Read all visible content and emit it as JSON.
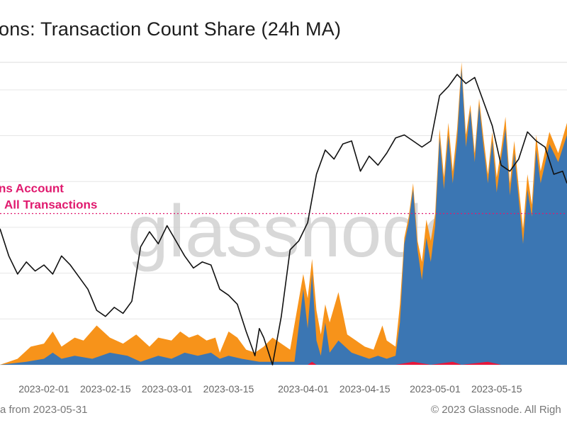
{
  "title": "ons: Transaction Count Share (24h MA)",
  "footer": {
    "left": "a from 2023-05-31",
    "right": "© 2023 Glassnode. All Righ"
  },
  "watermark": "glassnode",
  "colors": {
    "blue": "#3b76b3",
    "orange": "#f7931a",
    "red": "#e8173b",
    "price": "#111111",
    "reference": "#e0196e",
    "grid": "#e6e6e6"
  },
  "chart_data": {
    "type": "area",
    "annotation": [
      "ns Account",
      "All Transactions"
    ],
    "x_tick_labels": [
      "2023-02-01",
      "2023-02-15",
      "2023-03-01",
      "2023-03-15",
      "2023-04-01",
      "2023-04-15",
      "2023-05-01",
      "2023-05-15"
    ],
    "x_range": [
      "2023-01-22",
      "2023-05-31"
    ],
    "y_range": [
      0,
      100
    ],
    "reference_line": 50,
    "blue_area_points": [
      [
        "2023-01-22",
        0
      ],
      [
        "2023-01-28",
        1
      ],
      [
        "2023-02-01",
        2
      ],
      [
        "2023-02-03",
        4
      ],
      [
        "2023-02-05",
        2
      ],
      [
        "2023-02-08",
        3
      ],
      [
        "2023-02-12",
        2
      ],
      [
        "2023-02-16",
        4
      ],
      [
        "2023-02-20",
        3
      ],
      [
        "2023-02-23",
        1
      ],
      [
        "2023-02-27",
        3
      ],
      [
        "2023-03-02",
        2
      ],
      [
        "2023-03-05",
        4
      ],
      [
        "2023-03-08",
        3
      ],
      [
        "2023-03-11",
        4
      ],
      [
        "2023-03-13",
        2
      ],
      [
        "2023-03-15",
        3
      ],
      [
        "2023-03-18",
        2
      ],
      [
        "2023-03-22",
        1
      ],
      [
        "2023-03-26",
        1
      ],
      [
        "2023-03-30",
        1
      ],
      [
        "2023-04-01",
        25
      ],
      [
        "2023-04-02",
        12
      ],
      [
        "2023-04-03",
        30
      ],
      [
        "2023-04-04",
        8
      ],
      [
        "2023-04-05",
        3
      ],
      [
        "2023-04-06",
        14
      ],
      [
        "2023-04-07",
        4
      ],
      [
        "2023-04-09",
        8
      ],
      [
        "2023-04-12",
        4
      ],
      [
        "2023-04-14",
        3
      ],
      [
        "2023-04-16",
        2
      ],
      [
        "2023-04-18",
        3
      ],
      [
        "2023-04-20",
        2
      ],
      [
        "2023-04-22",
        3
      ],
      [
        "2023-04-23",
        14
      ],
      [
        "2023-04-24",
        40
      ],
      [
        "2023-04-25",
        47
      ],
      [
        "2023-04-26",
        58
      ],
      [
        "2023-04-27",
        38
      ],
      [
        "2023-04-28",
        28
      ],
      [
        "2023-04-29",
        42
      ],
      [
        "2023-04-30",
        34
      ],
      [
        "2023-05-01",
        46
      ],
      [
        "2023-05-02",
        75
      ],
      [
        "2023-05-03",
        58
      ],
      [
        "2023-05-04",
        76
      ],
      [
        "2023-05-05",
        60
      ],
      [
        "2023-05-06",
        74
      ],
      [
        "2023-05-07",
        98
      ],
      [
        "2023-05-08",
        72
      ],
      [
        "2023-05-09",
        84
      ],
      [
        "2023-05-10",
        67
      ],
      [
        "2023-05-11",
        86
      ],
      [
        "2023-05-12",
        72
      ],
      [
        "2023-05-13",
        60
      ],
      [
        "2023-05-14",
        74
      ],
      [
        "2023-05-15",
        57
      ],
      [
        "2023-05-16",
        68
      ],
      [
        "2023-05-17",
        78
      ],
      [
        "2023-05-18",
        56
      ],
      [
        "2023-05-19",
        70
      ],
      [
        "2023-05-20",
        55
      ],
      [
        "2023-05-21",
        40
      ],
      [
        "2023-05-22",
        58
      ],
      [
        "2023-05-23",
        49
      ],
      [
        "2023-05-24",
        71
      ],
      [
        "2023-05-25",
        60
      ],
      [
        "2023-05-27",
        73
      ],
      [
        "2023-05-29",
        67
      ],
      [
        "2023-05-31",
        76
      ]
    ],
    "orange_area_points": [
      [
        "2023-01-22",
        0
      ],
      [
        "2023-01-26",
        2
      ],
      [
        "2023-01-29",
        6
      ],
      [
        "2023-02-01",
        7
      ],
      [
        "2023-02-03",
        11
      ],
      [
        "2023-02-05",
        6
      ],
      [
        "2023-02-08",
        9
      ],
      [
        "2023-02-10",
        8
      ],
      [
        "2023-02-13",
        13
      ],
      [
        "2023-02-16",
        9
      ],
      [
        "2023-02-19",
        7
      ],
      [
        "2023-02-22",
        10
      ],
      [
        "2023-02-25",
        6
      ],
      [
        "2023-02-27",
        9
      ],
      [
        "2023-03-02",
        8
      ],
      [
        "2023-03-04",
        11
      ],
      [
        "2023-03-06",
        9
      ],
      [
        "2023-03-08",
        10
      ],
      [
        "2023-03-10",
        8
      ],
      [
        "2023-03-12",
        9
      ],
      [
        "2023-03-13",
        4
      ],
      [
        "2023-03-15",
        11
      ],
      [
        "2023-03-17",
        9
      ],
      [
        "2023-03-19",
        5
      ],
      [
        "2023-03-21",
        4
      ],
      [
        "2023-03-23",
        6
      ],
      [
        "2023-03-25",
        9
      ],
      [
        "2023-03-27",
        7
      ],
      [
        "2023-03-29",
        5
      ],
      [
        "2023-04-01",
        30
      ],
      [
        "2023-04-02",
        22
      ],
      [
        "2023-04-03",
        35
      ],
      [
        "2023-04-04",
        18
      ],
      [
        "2023-04-05",
        10
      ],
      [
        "2023-04-06",
        20
      ],
      [
        "2023-04-07",
        14
      ],
      [
        "2023-04-09",
        24
      ],
      [
        "2023-04-11",
        10
      ],
      [
        "2023-04-13",
        8
      ],
      [
        "2023-04-15",
        6
      ],
      [
        "2023-04-17",
        5
      ],
      [
        "2023-04-19",
        13
      ],
      [
        "2023-04-20",
        8
      ],
      [
        "2023-04-22",
        6
      ],
      [
        "2023-04-23",
        20
      ],
      [
        "2023-04-24",
        42
      ],
      [
        "2023-04-25",
        49
      ],
      [
        "2023-04-26",
        60
      ],
      [
        "2023-04-27",
        41
      ],
      [
        "2023-04-28",
        34
      ],
      [
        "2023-04-29",
        48
      ],
      [
        "2023-04-30",
        41
      ],
      [
        "2023-05-01",
        50
      ],
      [
        "2023-05-02",
        78
      ],
      [
        "2023-05-03",
        62
      ],
      [
        "2023-05-04",
        80
      ],
      [
        "2023-05-05",
        64
      ],
      [
        "2023-05-06",
        78
      ],
      [
        "2023-05-07",
        100
      ],
      [
        "2023-05-08",
        76
      ],
      [
        "2023-05-09",
        86
      ],
      [
        "2023-05-10",
        70
      ],
      [
        "2023-05-11",
        88
      ],
      [
        "2023-05-12",
        75
      ],
      [
        "2023-05-13",
        63
      ],
      [
        "2023-05-14",
        77
      ],
      [
        "2023-05-15",
        62
      ],
      [
        "2023-05-16",
        71
      ],
      [
        "2023-05-17",
        82
      ],
      [
        "2023-05-18",
        60
      ],
      [
        "2023-05-19",
        74
      ],
      [
        "2023-05-20",
        59
      ],
      [
        "2023-05-21",
        45
      ],
      [
        "2023-05-22",
        63
      ],
      [
        "2023-05-23",
        53
      ],
      [
        "2023-05-24",
        76
      ],
      [
        "2023-05-25",
        64
      ],
      [
        "2023-05-27",
        77
      ],
      [
        "2023-05-29",
        70
      ],
      [
        "2023-05-31",
        80
      ]
    ],
    "red_area_points": [
      [
        "2023-01-22",
        0
      ],
      [
        "2023-04-02",
        0
      ],
      [
        "2023-04-03",
        1
      ],
      [
        "2023-04-04",
        0
      ],
      [
        "2023-04-22",
        0
      ],
      [
        "2023-04-26",
        1
      ],
      [
        "2023-04-30",
        0
      ],
      [
        "2023-05-05",
        1
      ],
      [
        "2023-05-07",
        0
      ],
      [
        "2023-05-13",
        1
      ],
      [
        "2023-05-16",
        0
      ],
      [
        "2023-05-31",
        0
      ]
    ],
    "price_line_points": [
      [
        "2023-01-22",
        45
      ],
      [
        "2023-01-24",
        36
      ],
      [
        "2023-01-26",
        30
      ],
      [
        "2023-01-28",
        34
      ],
      [
        "2023-01-30",
        31
      ],
      [
        "2023-02-01",
        33
      ],
      [
        "2023-02-03",
        30
      ],
      [
        "2023-02-05",
        36
      ],
      [
        "2023-02-07",
        33
      ],
      [
        "2023-02-09",
        29
      ],
      [
        "2023-02-11",
        25
      ],
      [
        "2023-02-13",
        18
      ],
      [
        "2023-02-15",
        16
      ],
      [
        "2023-02-17",
        19
      ],
      [
        "2023-02-19",
        17
      ],
      [
        "2023-02-21",
        21
      ],
      [
        "2023-02-23",
        39
      ],
      [
        "2023-02-25",
        44
      ],
      [
        "2023-02-27",
        40
      ],
      [
        "2023-03-01",
        46
      ],
      [
        "2023-03-03",
        41
      ],
      [
        "2023-03-05",
        36
      ],
      [
        "2023-03-07",
        32
      ],
      [
        "2023-03-09",
        34
      ],
      [
        "2023-03-11",
        33
      ],
      [
        "2023-03-13",
        25
      ],
      [
        "2023-03-15",
        23
      ],
      [
        "2023-03-17",
        20
      ],
      [
        "2023-03-19",
        11
      ],
      [
        "2023-03-21",
        3
      ],
      [
        "2023-03-22",
        12
      ],
      [
        "2023-03-23",
        9
      ],
      [
        "2023-03-25",
        0
      ],
      [
        "2023-03-27",
        16
      ],
      [
        "2023-03-29",
        38
      ],
      [
        "2023-03-31",
        41
      ],
      [
        "2023-04-02",
        47
      ],
      [
        "2023-04-04",
        63
      ],
      [
        "2023-04-06",
        71
      ],
      [
        "2023-04-08",
        68
      ],
      [
        "2023-04-10",
        73
      ],
      [
        "2023-04-12",
        74
      ],
      [
        "2023-04-14",
        64
      ],
      [
        "2023-04-16",
        69
      ],
      [
        "2023-04-18",
        66
      ],
      [
        "2023-04-20",
        70
      ],
      [
        "2023-04-22",
        75
      ],
      [
        "2023-04-24",
        76
      ],
      [
        "2023-04-26",
        74
      ],
      [
        "2023-04-28",
        72
      ],
      [
        "2023-04-30",
        74
      ],
      [
        "2023-05-02",
        89
      ],
      [
        "2023-05-04",
        92
      ],
      [
        "2023-05-06",
        96
      ],
      [
        "2023-05-08",
        93
      ],
      [
        "2023-05-10",
        95
      ],
      [
        "2023-05-12",
        87
      ],
      [
        "2023-05-14",
        79
      ],
      [
        "2023-05-16",
        66
      ],
      [
        "2023-05-18",
        64
      ],
      [
        "2023-05-20",
        68
      ],
      [
        "2023-05-22",
        77
      ],
      [
        "2023-05-24",
        74
      ],
      [
        "2023-05-26",
        72
      ],
      [
        "2023-05-28",
        63
      ],
      [
        "2023-05-30",
        64
      ],
      [
        "2023-05-31",
        60
      ]
    ]
  }
}
